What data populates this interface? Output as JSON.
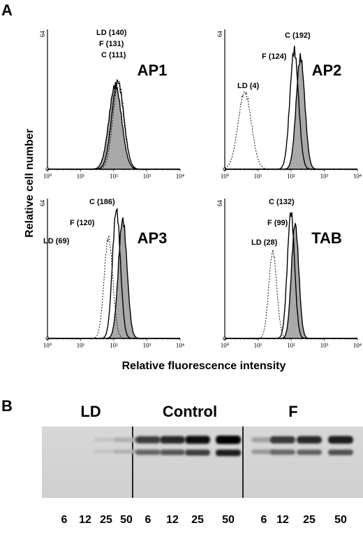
{
  "figure": {
    "panel_a_letter": "A",
    "panel_b_letter": "B",
    "ylabel": "Relative cell number",
    "xlabel": "Relative fluorescence intensity"
  },
  "chart_data": [
    {
      "type": "area",
      "title": "AP1",
      "xscale": "log",
      "xlim": [
        1,
        10000
      ],
      "x_ticks": [
        "10⁰",
        "10¹",
        "10²",
        "10³",
        "10⁴"
      ],
      "ymax_label": "64",
      "annotations": [
        "LD (140)",
        "F (131)",
        "C (111)"
      ],
      "series": [
        {
          "name": "LD",
          "style": "dotted",
          "peak_x": 140,
          "peak_height": 0.62,
          "width": 0.17
        },
        {
          "name": "F",
          "style": "open",
          "peak_x": 131,
          "peak_height": 0.63,
          "width": 0.18
        },
        {
          "name": "C",
          "style": "filled",
          "peak_x": 111,
          "peak_height": 0.6,
          "width": 0.19
        }
      ]
    },
    {
      "type": "area",
      "title": "AP2",
      "xscale": "log",
      "xlim": [
        1,
        10000
      ],
      "x_ticks": [
        "10⁰",
        "10¹",
        "10²",
        "10³",
        "10⁴"
      ],
      "ymax_label": "64",
      "annotations": [
        "C (192)",
        "F (124)",
        "LD (4)"
      ],
      "series": [
        {
          "name": "LD",
          "style": "dotted",
          "peak_x": 4,
          "peak_height": 0.55,
          "width": 0.2
        },
        {
          "name": "F",
          "style": "open",
          "peak_x": 124,
          "peak_height": 0.85,
          "width": 0.13
        },
        {
          "name": "C",
          "style": "filled",
          "peak_x": 192,
          "peak_height": 0.8,
          "width": 0.13
        }
      ]
    },
    {
      "type": "area",
      "title": "AP3",
      "xscale": "log",
      "xlim": [
        1,
        10000
      ],
      "x_ticks": [
        "10⁰",
        "10¹",
        "10²",
        "10³",
        "10⁴"
      ],
      "ymax_label": "64",
      "annotations": [
        "C (186)",
        "F (120)",
        "LD (69)"
      ],
      "series": [
        {
          "name": "LD",
          "style": "dotted",
          "peak_x": 69,
          "peak_height": 0.72,
          "width": 0.13
        },
        {
          "name": "F",
          "style": "open",
          "peak_x": 120,
          "peak_height": 0.92,
          "width": 0.12
        },
        {
          "name": "C",
          "style": "filled",
          "peak_x": 186,
          "peak_height": 0.85,
          "width": 0.13
        }
      ]
    },
    {
      "type": "area",
      "title": "TAB",
      "xscale": "log",
      "xlim": [
        1,
        10000
      ],
      "x_ticks": [
        "10⁰",
        "10¹",
        "10²",
        "10³",
        "10⁴"
      ],
      "ymax_label": "64",
      "annotations": [
        "C (132)",
        "F (99)",
        "LD (28)"
      ],
      "series": [
        {
          "name": "LD",
          "style": "dotted",
          "peak_x": 28,
          "peak_height": 0.62,
          "width": 0.12
        },
        {
          "name": "F",
          "style": "open",
          "peak_x": 99,
          "peak_height": 0.9,
          "width": 0.11
        },
        {
          "name": "C",
          "style": "filled",
          "peak_x": 132,
          "peak_height": 0.82,
          "width": 0.11
        }
      ]
    }
  ],
  "gel": {
    "groups": [
      {
        "name": "LD",
        "lanes": [
          "6",
          "12",
          "25",
          "50"
        ],
        "upper_band": [
          0.0,
          0.0,
          0.02,
          0.12
        ],
        "lower_band": [
          0.0,
          0.0,
          0.03,
          0.12
        ]
      },
      {
        "name": "Control",
        "lanes": [
          "6",
          "12",
          "25",
          "50"
        ],
        "upper_band": [
          0.7,
          0.8,
          0.92,
          1.0
        ],
        "lower_band": [
          0.5,
          0.58,
          0.7,
          0.85
        ]
      },
      {
        "name": "F",
        "lanes": [
          "6",
          "12",
          "25",
          "50"
        ],
        "upper_band": [
          0.2,
          0.72,
          0.8,
          0.85
        ],
        "lower_band": [
          0.25,
          0.48,
          0.52,
          0.6
        ]
      }
    ]
  }
}
